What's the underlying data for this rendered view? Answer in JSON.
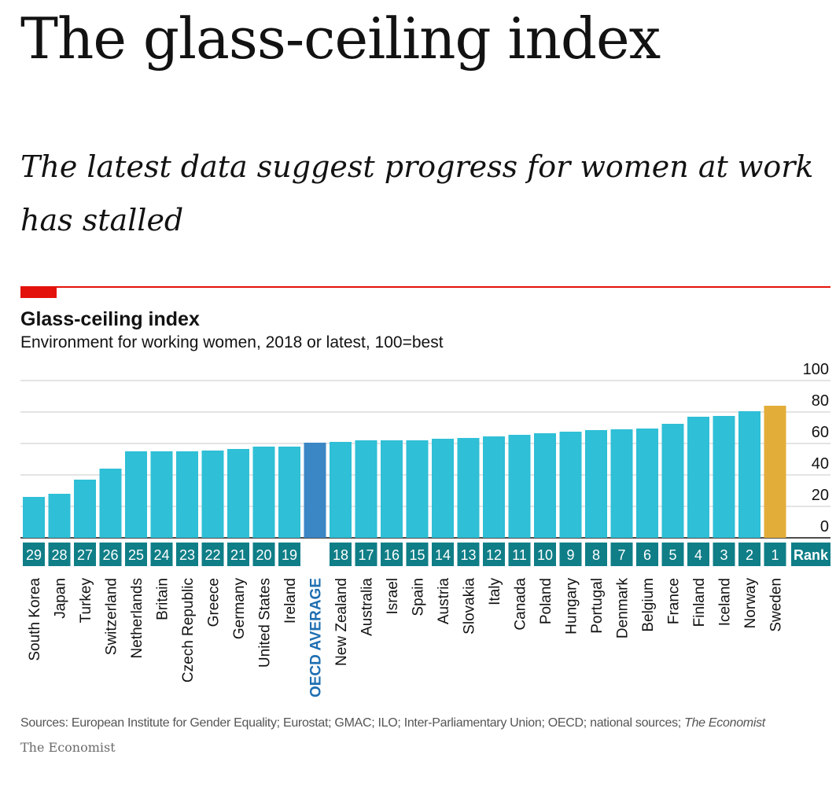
{
  "article": {
    "headline": "The glass-ceiling index",
    "subhead": "The latest data suggest progress for women at work has stalled"
  },
  "chart": {
    "title": "Glass-ceiling index",
    "subtitle": "Environment for working women, 2018 or latest, 100=best",
    "rank_header": "Rank",
    "sources_prefix": "Sources: European Institute for Gender Equality; Eurostat; GMAC; ILO; Inter-Parliamentary Union; OECD; national sources; ",
    "sources_italic": "The Economist",
    "brand": "The Economist"
  },
  "colors": {
    "bar": "#2fbfd6",
    "oecd_bar": "#3b86c4",
    "top_bar": "#e3ad3a",
    "rank_box": "#0f7e87",
    "oecd_label": "#1f6fb2",
    "grid": "#c9c9c9",
    "axis": "#121212",
    "accent_red": "#e3120b"
  },
  "chart_data": {
    "type": "bar",
    "title": "Glass-ceiling index",
    "subtitle": "Environment for working women, 2018 or latest, 100=best",
    "xlabel": "",
    "ylabel": "",
    "ylim": [
      0,
      100
    ],
    "yticks": [
      0,
      20,
      40,
      60,
      80,
      100
    ],
    "grid": true,
    "y_axis_side": "right",
    "categories": [
      "South Korea",
      "Japan",
      "Turkey",
      "Switzerland",
      "Netherlands",
      "Britain",
      "Czech Republic",
      "Greece",
      "Germany",
      "United States",
      "Ireland",
      "OECD AVERAGE",
      "New Zealand",
      "Australia",
      "Israel",
      "Spain",
      "Austria",
      "Slovakia",
      "Italy",
      "Canada",
      "Poland",
      "Hungary",
      "Portugal",
      "Denmark",
      "Belgium",
      "France",
      "Finland",
      "Iceland",
      "Norway",
      "Sweden"
    ],
    "values": [
      26,
      28,
      37,
      44,
      55,
      55,
      55,
      55.5,
      56.5,
      58,
      58,
      60.5,
      61,
      62,
      62,
      62,
      63,
      63.5,
      64.5,
      65.5,
      66.5,
      67.5,
      68.5,
      69,
      69.5,
      72.5,
      77,
      77.5,
      80.5,
      84
    ],
    "ranks": [
      "29",
      "28",
      "27",
      "26",
      "25",
      "24",
      "23",
      "22",
      "21",
      "20",
      "19",
      "",
      "18",
      "17",
      "16",
      "15",
      "14",
      "13",
      "12",
      "11",
      "10",
      "9",
      "8",
      "7",
      "6",
      "5",
      "4",
      "3",
      "2",
      "1"
    ]
  }
}
